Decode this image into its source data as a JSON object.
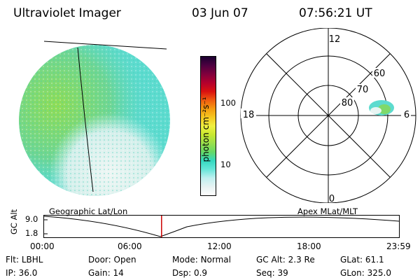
{
  "header": {
    "title": "Ultraviolet Imager",
    "date": "03 Jun 07",
    "time": "07:56:21 UT"
  },
  "colorbar": {
    "unit_label": "photon cm⁻²s⁻¹",
    "ticks": [
      "100",
      "10"
    ],
    "colors": [
      "#ffffff",
      "#e6f2f2",
      "#bff0f0",
      "#66e6d9",
      "#33d9c0",
      "#66d966",
      "#99e04d",
      "#c8e830",
      "#f0f040",
      "#f5c820",
      "#f59a10",
      "#ef5a10",
      "#d91010",
      "#b3002e",
      "#80003d",
      "#4d0040",
      "#1a0030"
    ]
  },
  "polar_plot": {
    "labels": {
      "top": "12",
      "bottom": "0",
      "left": "18",
      "right": "6"
    },
    "rings": [
      "80",
      "70",
      "60"
    ]
  },
  "timeline": {
    "left_caption": "Geographic Lat/Lon",
    "right_caption": "Apex  MLat/MLT",
    "y_axis_label": "GC Alt",
    "y_ticks": [
      "9.0",
      "1.8"
    ],
    "x_ticks": [
      "00:00",
      "06:00",
      "12:00",
      "18:00",
      "23:59"
    ],
    "current_marker_time": "07:56:21",
    "marker_color": "#cc0000"
  },
  "footer": {
    "row1": [
      {
        "label": "Flt:",
        "value": "LBHL"
      },
      {
        "label": "Door:",
        "value": "Open"
      },
      {
        "label": "Mode:",
        "value": "Normal"
      },
      {
        "label": "GC Alt:",
        "value": "2.3 Re"
      },
      {
        "label": "GLat:",
        "value": "61.1"
      }
    ],
    "row2": [
      {
        "label": "IP:",
        "value": "36.0"
      },
      {
        "label": "Gain:",
        "value": "14"
      },
      {
        "label": "Dsp:",
        "value": "0.9"
      },
      {
        "label": "Seq:",
        "value": "39"
      },
      {
        "label": "GLon:",
        "value": "325.0"
      }
    ]
  }
}
